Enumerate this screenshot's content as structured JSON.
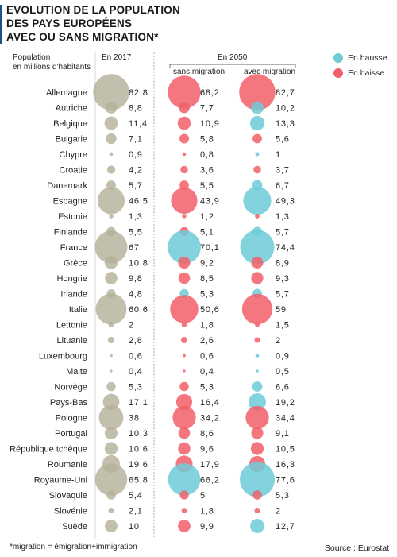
{
  "title": [
    "EVOLUTION DE LA POPULATION",
    "DES PAYS EUROPÉENS",
    "AVEC OU SANS MIGRATION*"
  ],
  "headers": {
    "population_line1": "Population",
    "population_line2": "en millions d'habitants",
    "year_2017": "En 2017",
    "year_2050": "En 2050",
    "sans": "sans migration",
    "avec": "avec migration"
  },
  "legend": [
    {
      "label": "En hausse",
      "color": "#6dcbd8"
    },
    {
      "label": "En baisse",
      "color": "#f25f6a"
    }
  ],
  "colors": {
    "base": "#b5b19a",
    "hausse": "#6dcbd8",
    "baisse": "#f25f6a"
  },
  "footnote": "*migration = émigration+immigration",
  "source": "Source : Eurostat",
  "chart_data": {
    "type": "bubble",
    "encoding": "bubble area proportional to population (millions)",
    "series": [
      {
        "name": "En 2017",
        "key": "v2017"
      },
      {
        "name": "sans migration",
        "key": "sans"
      },
      {
        "name": "avec migration",
        "key": "avec"
      }
    ],
    "countries": [
      {
        "name": "Allemagne",
        "v2017": "82,8",
        "sans": "68,2",
        "avec": "82,7"
      },
      {
        "name": "Autriche",
        "v2017": "8,8",
        "sans": "7,7",
        "avec": "10,2"
      },
      {
        "name": "Belgique",
        "v2017": "11,4",
        "sans": "10,9",
        "avec": "13,3"
      },
      {
        "name": "Bulgarie",
        "v2017": "7,1",
        "sans": "5,8",
        "avec": "5,6"
      },
      {
        "name": "Chypre",
        "v2017": "0,9",
        "sans": "0,8",
        "avec": "1"
      },
      {
        "name": "Croatie",
        "v2017": "4,2",
        "sans": "3,6",
        "avec": "3,7"
      },
      {
        "name": "Danemark",
        "v2017": "5,7",
        "sans": "5,5",
        "avec": "6,7"
      },
      {
        "name": "Espagne",
        "v2017": "46,5",
        "sans": "43,9",
        "avec": "49,3"
      },
      {
        "name": "Estonie",
        "v2017": "1,3",
        "sans": "1,2",
        "avec": "1,3"
      },
      {
        "name": "Finlande",
        "v2017": "5,5",
        "sans": "5,1",
        "avec": "5,7"
      },
      {
        "name": "France",
        "v2017": "67",
        "sans": "70,1",
        "avec": "74,4"
      },
      {
        "name": "Grèce",
        "v2017": "10,8",
        "sans": "9,2",
        "avec": "8,9"
      },
      {
        "name": "Hongrie",
        "v2017": "9,8",
        "sans": "8,5",
        "avec": "9,3"
      },
      {
        "name": "Irlande",
        "v2017": "4,8",
        "sans": "5,3",
        "avec": "5,7"
      },
      {
        "name": "Italie",
        "v2017": "60,6",
        "sans": "50,6",
        "avec": "59"
      },
      {
        "name": "Lettonie",
        "v2017": "2",
        "sans": "1,8",
        "avec": "1,5"
      },
      {
        "name": "Lituanie",
        "v2017": "2,8",
        "sans": "2,6",
        "avec": "2"
      },
      {
        "name": "Luxembourg",
        "v2017": "0,6",
        "sans": "0,6",
        "avec": "0,9"
      },
      {
        "name": "Malte",
        "v2017": "0,4",
        "sans": "0,4",
        "avec": "0,5"
      },
      {
        "name": "Norvège",
        "v2017": "5,3",
        "sans": "5,3",
        "avec": "6,6"
      },
      {
        "name": "Pays-Bas",
        "v2017": "17,1",
        "sans": "16,4",
        "avec": "19,2"
      },
      {
        "name": "Pologne",
        "v2017": "38",
        "sans": "34,2",
        "avec": "34,4"
      },
      {
        "name": "Portugal",
        "v2017": "10,3",
        "sans": "8,6",
        "avec": "9,1"
      },
      {
        "name": "République tchèque",
        "v2017": "10,6",
        "sans": "9,6",
        "avec": "10,5"
      },
      {
        "name": "Roumanie",
        "v2017": "19,6",
        "sans": "17,9",
        "avec": "16,3"
      },
      {
        "name": "Royaume-Uni",
        "v2017": "65,8",
        "sans": "66,2",
        "avec": "77,6"
      },
      {
        "name": "Slovaquie",
        "v2017": "5,4",
        "sans": "5",
        "avec": "5,3"
      },
      {
        "name": "Slovénie",
        "v2017": "2,1",
        "sans": "1,8",
        "avec": "2"
      },
      {
        "name": "Suède",
        "v2017": "10",
        "sans": "9,9",
        "avec": "12,7"
      }
    ]
  }
}
